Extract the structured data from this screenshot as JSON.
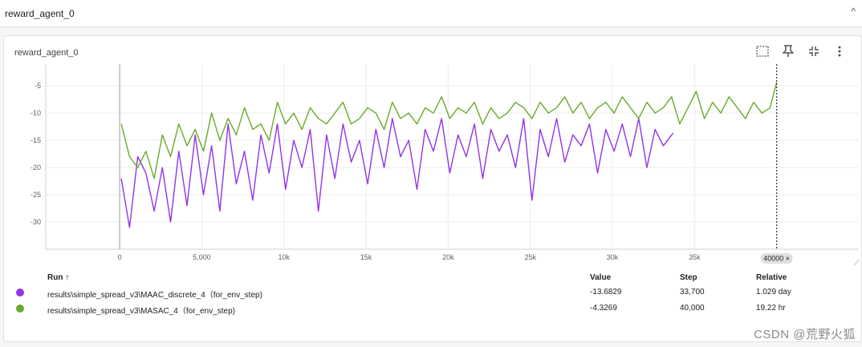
{
  "header": {
    "title": "reward_agent_0",
    "collapse_icon": "chevron-up-icon"
  },
  "card": {
    "title": "reward_agent_0",
    "tools": [
      "fit-domain-icon",
      "pin-icon",
      "collapse-icon",
      "more-vert-icon"
    ]
  },
  "legend": {
    "headers": {
      "run": "Run ↑",
      "value": "Value",
      "step": "Step",
      "relative": "Relative"
    },
    "rows": [
      {
        "color": "#9334e6",
        "name": "results\\simple_spread_v3\\MAAC_discrete_4（for_env_step)",
        "value": "-13.6829",
        "step": "33,700",
        "relative": "1.029 day"
      },
      {
        "color": "#6aaa2b",
        "name": "results\\simple_spread_v3\\MASAC_4（for_env_step)",
        "value": "-4.3269",
        "step": "40,000",
        "relative": "19.22 hr"
      }
    ]
  },
  "cursor_label": "40000 ×",
  "watermark": "CSDN @荒野火狐",
  "chart_data": {
    "type": "line",
    "title": "reward_agent_0",
    "xlabel": "",
    "ylabel": "",
    "xlim": [
      -4500,
      45000
    ],
    "ylim": [
      -35,
      -1
    ],
    "x_ticks": [
      0,
      5000,
      10000,
      15000,
      20000,
      25000,
      30000,
      35000
    ],
    "x_tick_labels": [
      "0",
      "5,000",
      "10k",
      "15k",
      "20k",
      "25k",
      "30k",
      "35k"
    ],
    "y_ticks": [
      -5,
      -10,
      -15,
      -20,
      -25,
      -30
    ],
    "y_tick_labels": [
      "-5",
      "-10",
      "-15",
      "-20",
      "-25",
      "-30"
    ],
    "grid": true,
    "cursor_x": 40000,
    "series": [
      {
        "name": "results\\simple_spread_v3\\MAAC_discrete_4（for_env_step)",
        "color": "#9334e6",
        "x": [
          100,
          600,
          1100,
          1600,
          2100,
          2600,
          3100,
          3600,
          4100,
          4600,
          5100,
          5600,
          6100,
          6600,
          7100,
          7600,
          8100,
          8600,
          9100,
          9600,
          10100,
          10600,
          11100,
          11600,
          12100,
          12600,
          13100,
          13600,
          14100,
          14600,
          15100,
          15600,
          16100,
          16600,
          17100,
          17600,
          18100,
          18600,
          19100,
          19600,
          20100,
          20600,
          21100,
          21600,
          22100,
          22600,
          23100,
          23600,
          24100,
          24600,
          25100,
          25600,
          26100,
          26600,
          27100,
          27600,
          28100,
          28600,
          29100,
          29600,
          30100,
          30600,
          31100,
          31600,
          32100,
          32600,
          33100,
          33700
        ],
        "values": [
          -22,
          -31,
          -18,
          -21,
          -28,
          -20,
          -30,
          -17,
          -27,
          -14,
          -25,
          -16,
          -28,
          -12,
          -23,
          -17,
          -26,
          -14,
          -21,
          -12,
          -24,
          -15,
          -20,
          -13,
          -28,
          -14,
          -22,
          -12,
          -19,
          -15,
          -23,
          -13,
          -20,
          -11,
          -18,
          -15,
          -24,
          -13,
          -17,
          -11,
          -21,
          -14,
          -18,
          -12,
          -22,
          -13,
          -17,
          -14,
          -20,
          -11,
          -26,
          -13,
          -18,
          -11,
          -19,
          -14,
          -16,
          -12,
          -21,
          -13,
          -17,
          -12,
          -18,
          -11,
          -20,
          -13,
          -16,
          -13.68
        ]
      },
      {
        "name": "results\\simple_spread_v3\\MASAC_4（for_env_step)",
        "color": "#6aaa2b",
        "x": [
          100,
          600,
          1100,
          1600,
          2100,
          2600,
          3100,
          3600,
          4100,
          4600,
          5100,
          5600,
          6100,
          6600,
          7100,
          7600,
          8100,
          8600,
          9100,
          9600,
          10100,
          10600,
          11100,
          11600,
          12100,
          12600,
          13100,
          13600,
          14100,
          14600,
          15100,
          15600,
          16100,
          16600,
          17100,
          17600,
          18100,
          18600,
          19100,
          19600,
          20100,
          20600,
          21100,
          21600,
          22100,
          22600,
          23100,
          23600,
          24100,
          24600,
          25100,
          25600,
          26100,
          26600,
          27100,
          27600,
          28100,
          28600,
          29100,
          29600,
          30100,
          30600,
          31100,
          31600,
          32100,
          32600,
          33100,
          33600,
          34100,
          34600,
          35100,
          35600,
          36100,
          36600,
          37100,
          37600,
          38100,
          38600,
          39100,
          39600,
          40000
        ],
        "values": [
          -12,
          -18,
          -20,
          -17,
          -22,
          -14,
          -18,
          -12,
          -16,
          -13,
          -17,
          -10,
          -15,
          -11,
          -14,
          -9,
          -13,
          -12,
          -15,
          -8,
          -12,
          -10,
          -13,
          -9,
          -11,
          -12,
          -10,
          -8,
          -12,
          -11,
          -9,
          -10,
          -13,
          -8,
          -11,
          -10,
          -12,
          -9,
          -10,
          -7,
          -11,
          -9,
          -10,
          -8,
          -12,
          -9,
          -11,
          -10,
          -8,
          -9,
          -11,
          -8,
          -10,
          -9,
          -7,
          -10,
          -8,
          -11,
          -9,
          -8,
          -10,
          -7,
          -9,
          -11,
          -8,
          -10,
          -9,
          -7,
          -12,
          -9,
          -6,
          -11,
          -8,
          -10,
          -7,
          -9,
          -11,
          -8,
          -10,
          -9,
          -4.33
        ]
      }
    ]
  }
}
